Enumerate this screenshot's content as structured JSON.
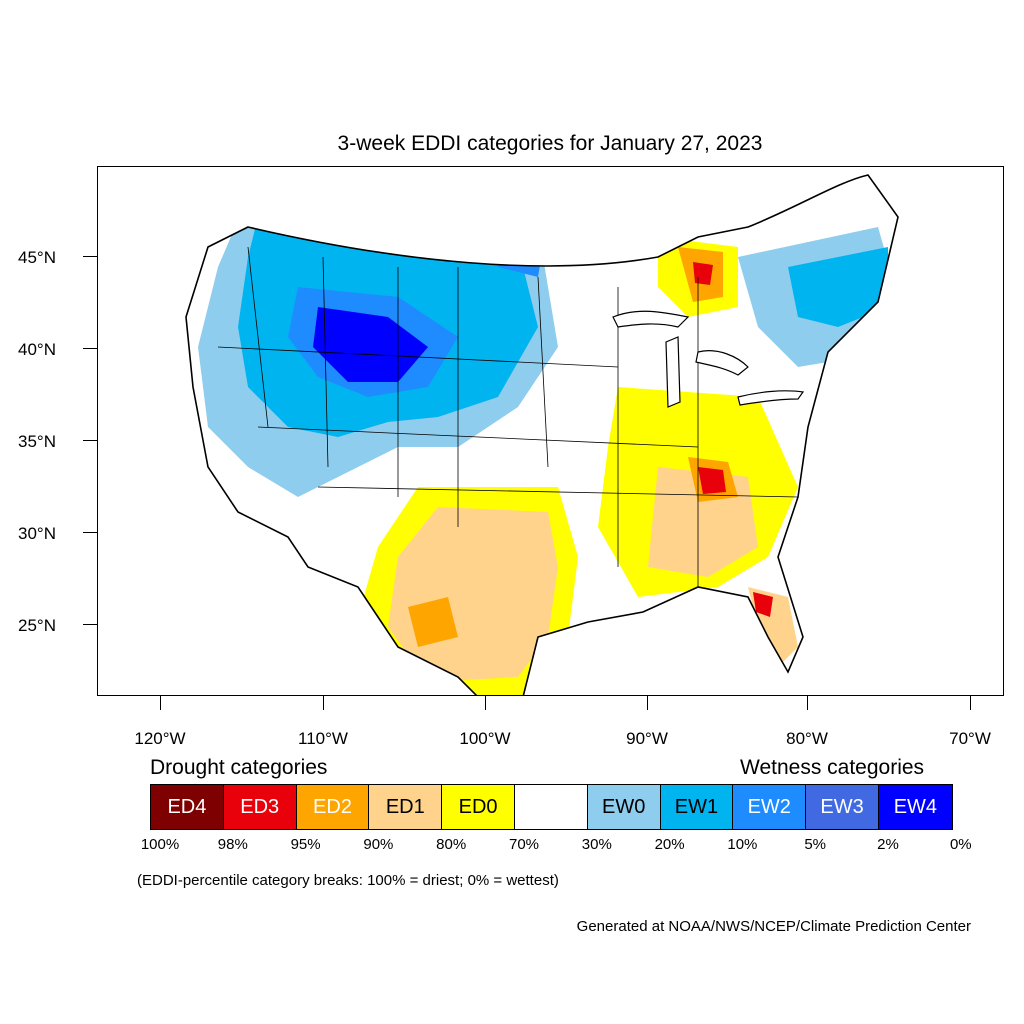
{
  "title": "3-week EDDI categories for January 27, 2023",
  "map": {
    "projection": "Lambert conformal (CONUS)",
    "lat_labels": [
      "45°N",
      "40°N",
      "35°N",
      "30°N",
      "25°N"
    ],
    "lon_labels": [
      "120°W",
      "110°W",
      "100°W",
      "90°W",
      "80°W",
      "70°W"
    ]
  },
  "legend": {
    "drought_heading": "Drought categories",
    "wetness_heading": "Wetness categories",
    "categories": [
      {
        "label": "ED4",
        "color": "#7f0000",
        "text_color": "#ffffff"
      },
      {
        "label": "ED3",
        "color": "#e8000b",
        "text_color": "#ffffff"
      },
      {
        "label": "ED2",
        "color": "#ffa500",
        "text_color": "#ffffff"
      },
      {
        "label": "ED1",
        "color": "#ffd38c",
        "text_color": "#000000"
      },
      {
        "label": "ED0",
        "color": "#ffff00",
        "text_color": "#000000"
      },
      {
        "label": "",
        "color": "#ffffff",
        "text_color": "#000000"
      },
      {
        "label": "EW0",
        "color": "#8fcdee",
        "text_color": "#000000"
      },
      {
        "label": "EW1",
        "color": "#00b4f0",
        "text_color": "#000000"
      },
      {
        "label": "EW2",
        "color": "#1e8cff",
        "text_color": "#ffffff"
      },
      {
        "label": "EW3",
        "color": "#4169e1",
        "text_color": "#ffffff"
      },
      {
        "label": "EW4",
        "color": "#0000ff",
        "text_color": "#ffffff"
      }
    ],
    "percentiles": [
      "100%",
      "98%",
      "95%",
      "90%",
      "80%",
      "70%",
      "30%",
      "20%",
      "10%",
      "5%",
      "2%",
      "0%"
    ]
  },
  "note": "(EDDI-percentile category breaks: 100% = driest; 0% = wettest)",
  "credit": "Generated at NOAA/NWS/NCEP/Climate Prediction Center"
}
